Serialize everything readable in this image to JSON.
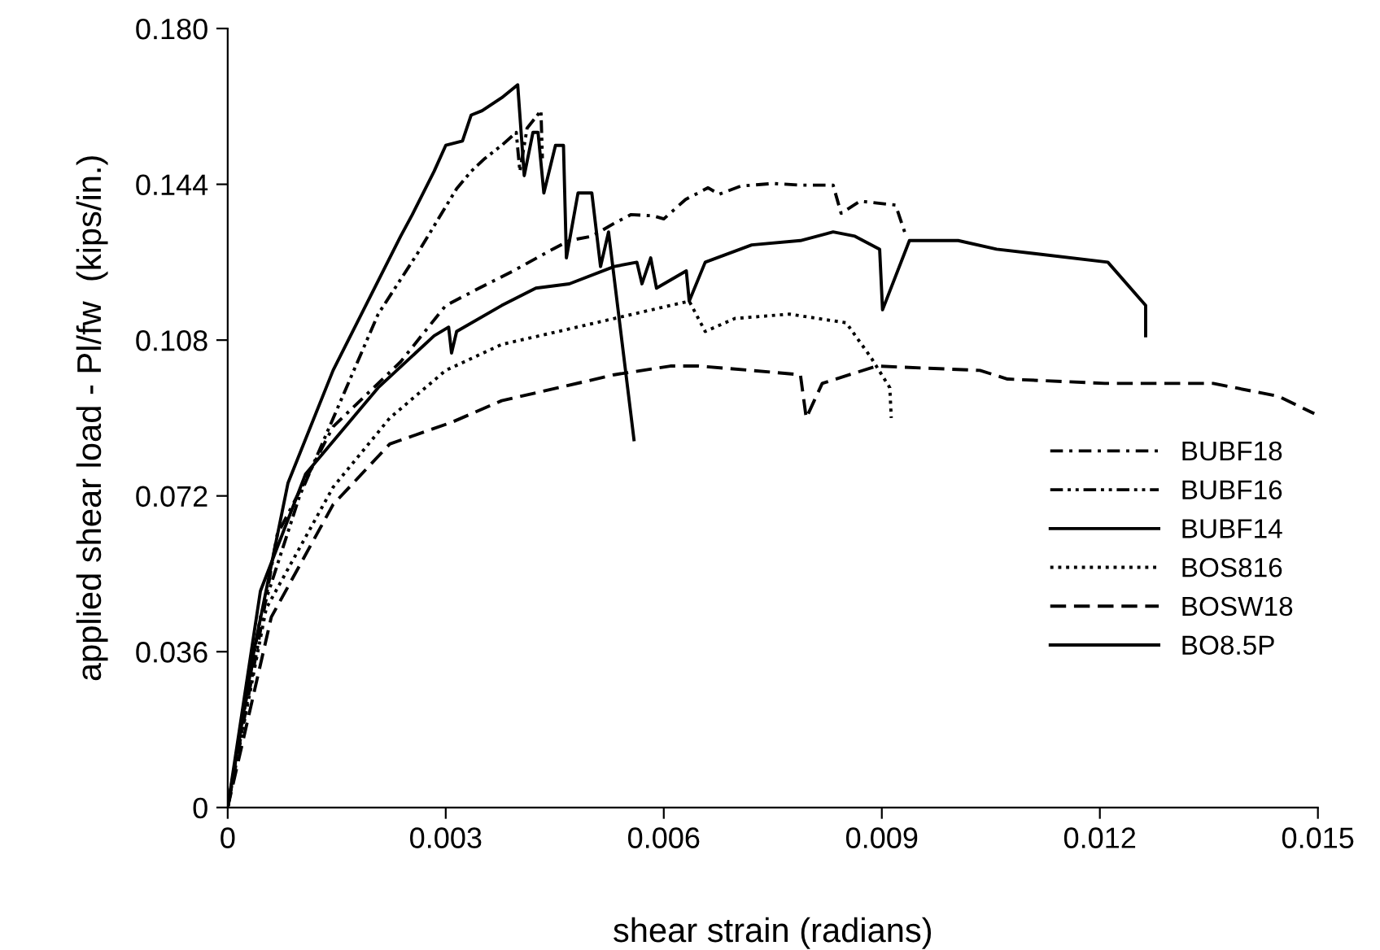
{
  "chart_data": {
    "type": "line",
    "xlabel": "shear strain (radians)",
    "ylabel": "applied shear load - Pl/fw  (kips/in.)",
    "xlim": [
      0,
      0.015
    ],
    "ylim": [
      0,
      0.18
    ],
    "xticks": [
      0,
      0.003,
      0.006,
      0.009,
      0.012,
      0.015
    ],
    "yticks": [
      0,
      0.036,
      0.072,
      0.108,
      0.144,
      {
        "value": 0.18,
        "label": "0.180"
      }
    ],
    "grid": false,
    "legend": "right",
    "marker": "none",
    "series": [
      {
        "name": "BUBF18",
        "color": "#000000",
        "line_style": "dashdot",
        "x": [
          0,
          0.00041,
          0.00068,
          0.00145,
          0.00238,
          0.003,
          0.00346,
          0.00393,
          0.00447,
          0.0047,
          0.00501,
          0.00532,
          0.00555,
          0.00586,
          0.006,
          0.0063,
          0.00661,
          0.00676,
          0.00706,
          0.0075,
          0.00788,
          0.00833,
          0.00844,
          0.0087,
          0.00919,
          0.00934
        ],
        "values": [
          0,
          0.037,
          0.063,
          0.088,
          0.103,
          0.116,
          0.12,
          0.124,
          0.129,
          0.131,
          0.132,
          0.135,
          0.137,
          0.1367,
          0.136,
          0.1405,
          0.1432,
          0.1417,
          0.1436,
          0.1442,
          0.1438,
          0.1438,
          0.1373,
          0.1401,
          0.1392,
          0.1317
        ]
      },
      {
        "name": "BUBF16",
        "color": "#000000",
        "line_style": "dashdotdot",
        "x": [
          0,
          0.00045,
          0.00099,
          0.00207,
          0.00261,
          0.00315,
          0.00335,
          0.00354,
          0.00377,
          0.00397,
          0.00402,
          0.00412,
          0.00431,
          0.00433
        ],
        "values": [
          0,
          0.044,
          0.072,
          0.114,
          0.128,
          0.143,
          0.147,
          0.15,
          0.153,
          0.156,
          0.147,
          0.157,
          0.161,
          0.15
        ]
      },
      {
        "name": "BUBF14",
        "color": "#000000",
        "line_style": "solid",
        "x": [
          0,
          0.00037,
          0.00083,
          0.00145,
          0.00184,
          0.00238,
          0.00254,
          0.00284,
          0.003,
          0.00323,
          0.00335,
          0.0035,
          0.00377,
          0.00399,
          0.00408,
          0.0042,
          0.00427,
          0.00435,
          0.00451,
          0.00462,
          0.00466,
          0.00482,
          0.00501,
          0.00513,
          0.00524,
          0.00559
        ],
        "values": [
          0,
          0.037,
          0.075,
          0.101,
          0.114,
          0.132,
          0.137,
          0.147,
          0.153,
          0.154,
          0.16,
          0.161,
          0.164,
          0.167,
          0.146,
          0.156,
          0.156,
          0.142,
          0.153,
          0.153,
          0.127,
          0.142,
          0.142,
          0.125,
          0.133,
          0.085
        ]
      },
      {
        "name": "BOS816",
        "color": "#000000",
        "line_style": "dotted",
        "x": [
          0,
          0.00053,
          0.00145,
          0.00223,
          0.003,
          0.00377,
          0.00455,
          0.00532,
          0.00609,
          0.00635,
          0.00657,
          0.00698,
          0.00773,
          0.00851,
          0.00885,
          0.00911,
          0.00913
        ],
        "values": [
          0,
          0.046,
          0.074,
          0.09,
          0.101,
          0.107,
          0.11,
          0.113,
          0.116,
          0.117,
          0.11,
          0.113,
          0.114,
          0.112,
          0.104,
          0.097,
          0.09
        ]
      },
      {
        "name": "BOSW18",
        "color": "#000000",
        "line_style": "dashed",
        "x": [
          0,
          0.0006,
          0.00145,
          0.00223,
          0.00308,
          0.00377,
          0.00455,
          0.00532,
          0.00609,
          0.00648,
          0.0072,
          0.00788,
          0.00796,
          0.00818,
          0.00893,
          0.01035,
          0.01073,
          0.01207,
          0.01356,
          0.01446,
          0.01495
        ],
        "values": [
          0,
          0.044,
          0.07,
          0.084,
          0.089,
          0.094,
          0.097,
          0.1,
          0.102,
          0.102,
          0.101,
          0.1,
          0.09,
          0.098,
          0.102,
          0.101,
          0.099,
          0.098,
          0.098,
          0.095,
          0.091
        ]
      },
      {
        "name": "BO8.5P",
        "color": "#000000",
        "line_style": "solid",
        "x": [
          0,
          0.00045,
          0.00107,
          0.00207,
          0.00284,
          0.00304,
          0.00308,
          0.00315,
          0.00377,
          0.00424,
          0.0047,
          0.00532,
          0.00563,
          0.0057,
          0.00582,
          0.0059,
          0.00631,
          0.00635,
          0.00657,
          0.00721,
          0.00788,
          0.00833,
          0.00863,
          0.00897,
          0.00901,
          0.00938,
          0.01005,
          0.01058,
          0.0111,
          0.01211,
          0.01263,
          0.01263
        ],
        "values": [
          0,
          0.05,
          0.077,
          0.097,
          0.109,
          0.111,
          0.105,
          0.11,
          0.116,
          0.12,
          0.121,
          0.125,
          0.126,
          0.121,
          0.127,
          0.12,
          0.124,
          0.117,
          0.126,
          0.13,
          0.131,
          0.133,
          0.132,
          0.129,
          0.115,
          0.131,
          0.131,
          0.129,
          0.128,
          0.126,
          0.116,
          0.109
        ]
      }
    ]
  }
}
